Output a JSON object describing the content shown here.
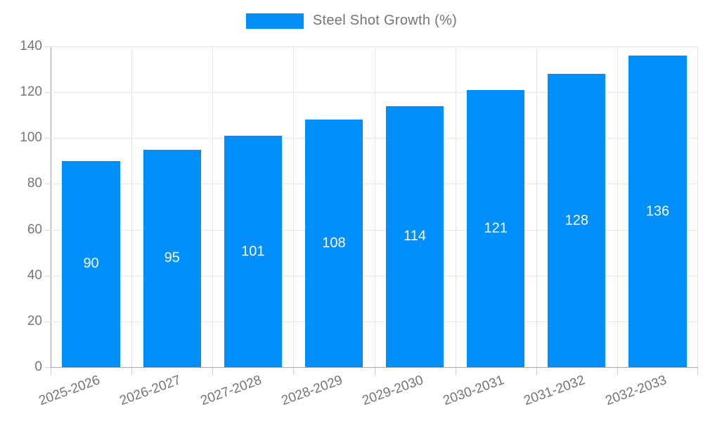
{
  "legend": {
    "label": "Steel Shot Growth (%)",
    "swatch_color": "#008FFB"
  },
  "chart_data": {
    "type": "bar",
    "title": "Steel Shot Growth (%)",
    "categories": [
      "2025-2026",
      "2026-2027",
      "2027-2028",
      "2028-2029",
      "2029-2030",
      "2030-2031",
      "2031-2032",
      "2032-2033"
    ],
    "values": [
      90,
      95,
      101,
      108,
      114,
      121,
      128,
      136
    ],
    "series_name": "Steel Shot Growth (%)",
    "xlabel": "",
    "ylabel": "",
    "ylim": [
      0,
      140
    ],
    "yticks": [
      0,
      20,
      40,
      60,
      80,
      100,
      120,
      140
    ],
    "grid": true,
    "legend_position": "top",
    "x_label_rotation_deg": -20,
    "bar_color": "#008FFB",
    "value_label_color": "#ffffff",
    "axis_text_color": "#757575",
    "gridline_color": "#e6e6e6",
    "axis_line_color": "#aaaaaa"
  }
}
